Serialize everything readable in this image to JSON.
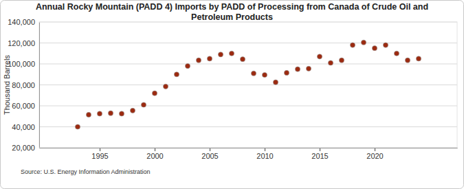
{
  "chart_data": {
    "type": "scatter",
    "title": "Annual Rocky Mountain (PADD 4) Imports by PADD of Processing from Canada of Crude Oil and Petroleum Products",
    "y_label": "Thousand Barrels",
    "source": "Source: U.S. Energy Information Administration",
    "x": [
      1993,
      1994,
      1995,
      1996,
      1997,
      1998,
      1999,
      2000,
      2001,
      2002,
      2003,
      2004,
      2005,
      2006,
      2007,
      2008,
      2009,
      2010,
      2011,
      2012,
      2013,
      2014,
      2015,
      2016,
      2017,
      2018,
      2019,
      2020,
      2021,
      2022,
      2023,
      2024
    ],
    "series": [
      {
        "color": "#9c2a10",
        "marker": "circle",
        "values": [
          40000,
          51500,
          52500,
          53000,
          52500,
          55500,
          61000,
          72000,
          78500,
          90000,
          98000,
          103500,
          105000,
          109000,
          110000,
          104500,
          91000,
          89500,
          82500,
          91500,
          95000,
          95500,
          107000,
          101000,
          103500,
          118000,
          120500,
          115000,
          118000,
          110000,
          103500,
          105000
        ]
      }
    ],
    "xlim": [
      1989.5,
      2027.5
    ],
    "xticks": [
      1995,
      2000,
      2005,
      2010,
      2015,
      2020
    ],
    "ylim": [
      20000,
      140000
    ],
    "yticks": [
      {
        "value": 20000,
        "label": "20,000"
      },
      {
        "value": 40000,
        "label": "40,000"
      },
      {
        "value": 60000,
        "label": "60,000"
      },
      {
        "value": 80000,
        "label": "80,000"
      },
      {
        "value": 100000,
        "label": "100,000"
      },
      {
        "value": 120000,
        "label": "120,000"
      },
      {
        "value": 140000,
        "label": "140,000"
      }
    ],
    "grid": true
  }
}
